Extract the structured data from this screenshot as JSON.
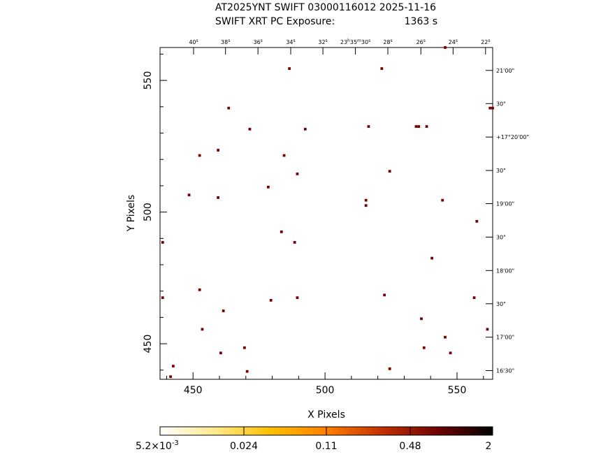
{
  "chart_data": {
    "type": "scatter",
    "title_line1": "AT2025YNT SWIFT 03000116012 2025-11-16",
    "title_line2_left": "SWIFT XRT PC Exposure:",
    "title_line2_right": "1363 s",
    "xlabel": "X Pixels",
    "ylabel": "Y Pixels",
    "xlim": [
      437.5,
      563.5
    ],
    "ylim": [
      436.5,
      562.5
    ],
    "x_ticks": [
      {
        "value": 450,
        "label": "450"
      },
      {
        "value": 500,
        "label": "500"
      },
      {
        "value": 550,
        "label": "550"
      }
    ],
    "y_ticks": [
      {
        "value": 450,
        "label": "450"
      },
      {
        "value": 500,
        "label": "500"
      },
      {
        "value": 550,
        "label": "550"
      }
    ],
    "ra_ticks": [
      {
        "x": 450.2,
        "h": "",
        "m": "",
        "s": "40",
        "sfrac": "s"
      },
      {
        "x": 462.3,
        "h": "",
        "m": "",
        "s": "38",
        "sfrac": "s"
      },
      {
        "x": 474.6,
        "h": "",
        "m": "",
        "s": "36",
        "sfrac": "s"
      },
      {
        "x": 487.0,
        "h": "",
        "m": "",
        "s": "34",
        "sfrac": "s"
      },
      {
        "x": 499.2,
        "h": "",
        "m": "",
        "s": "32",
        "sfrac": "s"
      },
      {
        "x": 511.5,
        "h": "23",
        "m": "35",
        "s": "30",
        "sfrac": "s"
      },
      {
        "x": 523.8,
        "h": "",
        "m": "",
        "s": "28",
        "sfrac": "s"
      },
      {
        "x": 536.3,
        "h": "",
        "m": "",
        "s": "26",
        "sfrac": "s"
      },
      {
        "x": 548.5,
        "h": "",
        "m": "",
        "s": "24",
        "sfrac": "s"
      },
      {
        "x": 560.8,
        "h": "",
        "m": "",
        "s": "22",
        "sfrac": "s"
      }
    ],
    "dec_ticks": [
      {
        "y": 553.8,
        "label": "21'00\""
      },
      {
        "y": 541.2,
        "label": "30\""
      },
      {
        "y": 528.5,
        "label": "+17°20'00\""
      },
      {
        "y": 515.8,
        "label": "30\""
      },
      {
        "y": 503.2,
        "label": "19'00\""
      },
      {
        "y": 490.5,
        "label": "30\""
      },
      {
        "y": 477.8,
        "label": "18'00\""
      },
      {
        "y": 465.2,
        "label": "30\""
      },
      {
        "y": 452.5,
        "label": "17'00\""
      },
      {
        "y": 439.8,
        "label": "16'30\""
      }
    ],
    "points": [
      {
        "x": 438.5,
        "y": 488.5
      },
      {
        "x": 438.5,
        "y": 467.5
      },
      {
        "x": 441.5,
        "y": 437.5
      },
      {
        "x": 442.5,
        "y": 441.5
      },
      {
        "x": 448.5,
        "y": 506.5
      },
      {
        "x": 452.5,
        "y": 521.5
      },
      {
        "x": 452.5,
        "y": 470.5
      },
      {
        "x": 453.5,
        "y": 455.5
      },
      {
        "x": 459.5,
        "y": 523.5
      },
      {
        "x": 459.5,
        "y": 505.5
      },
      {
        "x": 460.5,
        "y": 446.5
      },
      {
        "x": 461.5,
        "y": 462.5
      },
      {
        "x": 463.5,
        "y": 539.5
      },
      {
        "x": 469.5,
        "y": 448.5
      },
      {
        "x": 470.5,
        "y": 439.5
      },
      {
        "x": 471.5,
        "y": 531.5
      },
      {
        "x": 478.5,
        "y": 509.5
      },
      {
        "x": 479.5,
        "y": 466.5
      },
      {
        "x": 483.5,
        "y": 492.5
      },
      {
        "x": 484.5,
        "y": 521.5
      },
      {
        "x": 486.5,
        "y": 554.5
      },
      {
        "x": 488.5,
        "y": 488.5
      },
      {
        "x": 489.5,
        "y": 514.5
      },
      {
        "x": 489.5,
        "y": 467.5
      },
      {
        "x": 492.5,
        "y": 531.5
      },
      {
        "x": 515.5,
        "y": 504.5
      },
      {
        "x": 515.5,
        "y": 502.5
      },
      {
        "x": 516.5,
        "y": 532.5
      },
      {
        "x": 521.5,
        "y": 554.5
      },
      {
        "x": 522.5,
        "y": 468.5
      },
      {
        "x": 524.5,
        "y": 515.5
      },
      {
        "x": 524.5,
        "y": 440.5
      },
      {
        "x": 534.5,
        "y": 532.5
      },
      {
        "x": 535.5,
        "y": 532.5
      },
      {
        "x": 536.5,
        "y": 459.5
      },
      {
        "x": 537.5,
        "y": 448.5
      },
      {
        "x": 538.5,
        "y": 532.5
      },
      {
        "x": 540.5,
        "y": 482.5
      },
      {
        "x": 544.5,
        "y": 504.5
      },
      {
        "x": 545.5,
        "y": 452.5
      },
      {
        "x": 545.5,
        "y": 562.5
      },
      {
        "x": 547.5,
        "y": 446.5
      },
      {
        "x": 556.5,
        "y": 467.5
      },
      {
        "x": 557.5,
        "y": 496.5
      },
      {
        "x": 561.5,
        "y": 455.5
      },
      {
        "x": 562.5,
        "y": 539.5
      },
      {
        "x": 563.5,
        "y": 539.5
      }
    ],
    "point_color": "#7a0000",
    "colorbar": {
      "labels": [
        "5.2×10",
        "-3",
        "0.024",
        "0.11",
        "0.48",
        "2"
      ],
      "colors": [
        "#ffffff",
        "#ffe98a",
        "#ffc000",
        "#ff8000",
        "#c33000",
        "#700000",
        "#000000"
      ]
    }
  }
}
